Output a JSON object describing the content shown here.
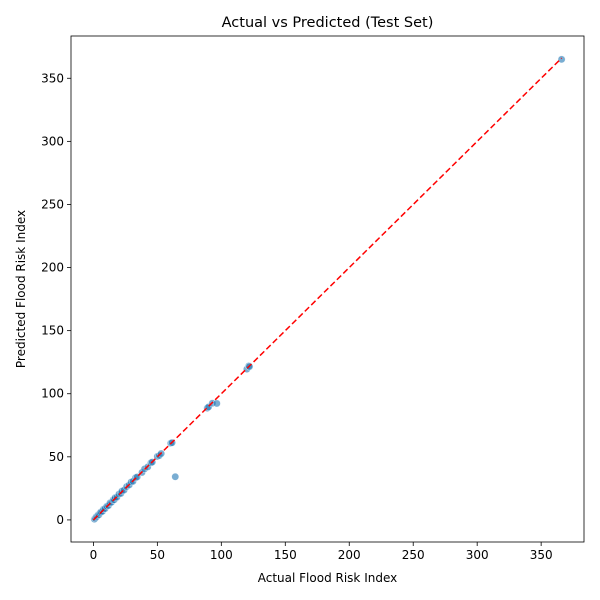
{
  "chart_data": {
    "type": "scatter",
    "title": "Actual vs Predicted (Test Set)",
    "xlabel": "Actual Flood Risk Index",
    "ylabel": "Predicted Flood Risk Index",
    "xlim": [
      -17.5,
      383.5
    ],
    "ylim": [
      -17.5,
      383.5
    ],
    "xticks": [
      0,
      50,
      100,
      150,
      200,
      250,
      300,
      350
    ],
    "yticks": [
      0,
      50,
      100,
      150,
      200,
      250,
      300,
      350
    ],
    "grid": false,
    "point_color": "#1f77b4",
    "point_alpha": 0.6,
    "reference_line": {
      "from": [
        0,
        0
      ],
      "to": [
        366,
        366
      ],
      "color": "#ff0000",
      "style": "dashed"
    },
    "points": [
      [
        0.8,
        0.6
      ],
      [
        1.5,
        1.3
      ],
      [
        2.2,
        2.5
      ],
      [
        3.0,
        2.8
      ],
      [
        3.6,
        3.9
      ],
      [
        4.5,
        4.2
      ],
      [
        5.2,
        5.6
      ],
      [
        6.0,
        6.3
      ],
      [
        7.1,
        6.8
      ],
      [
        8.0,
        8.5
      ],
      [
        9.2,
        9.0
      ],
      [
        10.5,
        10.8
      ],
      [
        11.8,
        11.4
      ],
      [
        13.0,
        13.5
      ],
      [
        14.2,
        14.0
      ],
      [
        15.5,
        15.9
      ],
      [
        16.3,
        16.0
      ],
      [
        17.0,
        17.6
      ],
      [
        18.4,
        18.0
      ],
      [
        20.0,
        20.5
      ],
      [
        21.5,
        21.0
      ],
      [
        22.3,
        22.8
      ],
      [
        24.0,
        23.6
      ],
      [
        26.0,
        26.4
      ],
      [
        28.0,
        27.7
      ],
      [
        29.5,
        30.0
      ],
      [
        31.0,
        30.6
      ],
      [
        33.0,
        33.5
      ],
      [
        34.2,
        34.0
      ],
      [
        38.0,
        37.6
      ],
      [
        40.0,
        40.4
      ],
      [
        42.5,
        42.0
      ],
      [
        45.0,
        45.3
      ],
      [
        46.0,
        45.8
      ],
      [
        50.0,
        50.3
      ],
      [
        51.5,
        51.0
      ],
      [
        53.0,
        52.6
      ],
      [
        60.5,
        60.8
      ],
      [
        61.5,
        61.2
      ],
      [
        64.0,
        34.2
      ],
      [
        89.0,
        88.6
      ],
      [
        90.0,
        89.5
      ],
      [
        93.0,
        92.5
      ],
      [
        96.5,
        92.3
      ],
      [
        120.0,
        119.5
      ],
      [
        121.5,
        122.0
      ],
      [
        122.0,
        121.5
      ],
      [
        366.0,
        365.0
      ]
    ]
  }
}
